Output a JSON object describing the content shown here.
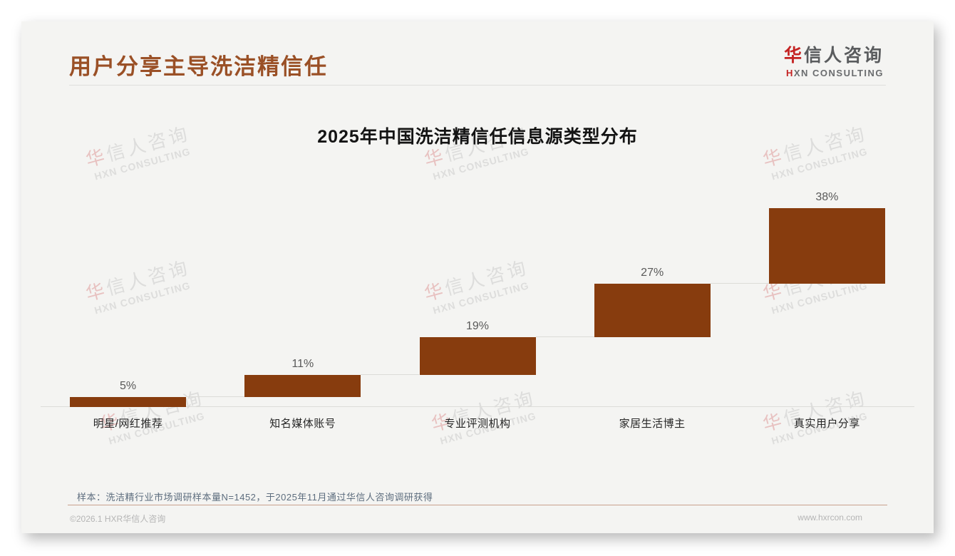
{
  "page": {
    "title": "用户分享主导洗洁精信任",
    "note": "样本：洗洁精行业市场调研样本量N=1452，于2025年11月通过华信人咨询调研获得",
    "footer_left": "©2026.1 HXR华信人咨询",
    "footer_right": "www.hxrcon.com"
  },
  "logo": {
    "zh_accent": "华",
    "zh_rest": "信人咨询",
    "en_accent": "H",
    "en_rest": "XN CONSULTING"
  },
  "watermark": {
    "line1_accent": "华",
    "line1_rest": "信人咨询",
    "line2": "HXN CONSULTING"
  },
  "chart_data": {
    "type": "bar",
    "subtype": "waterfall",
    "title": "2025年中国洗洁精信任信息源类型分布",
    "categories": [
      "明星/网红推荐",
      "知名媒体账号",
      "专业评测机构",
      "家居生活博主",
      "真实用户分享"
    ],
    "values": [
      5,
      11,
      19,
      27,
      38
    ],
    "value_labels": [
      "5%",
      "11%",
      "19%",
      "27%",
      "38%"
    ],
    "cumulative": [
      5,
      16,
      35,
      62,
      100
    ],
    "unit": "%",
    "ylim": [
      0,
      100
    ],
    "grid": false,
    "legend": "none",
    "bar_color": "#873C0E",
    "connector_color": "#dcdcd8",
    "value_label_color": "#595959"
  }
}
